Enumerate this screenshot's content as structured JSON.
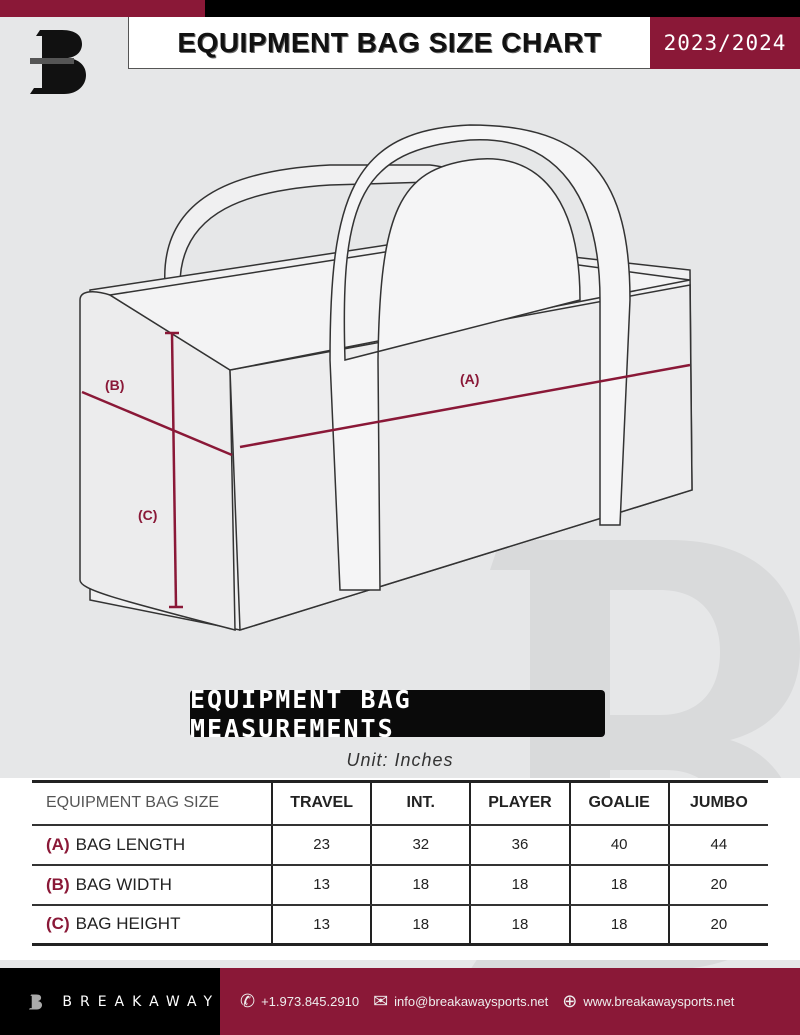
{
  "header": {
    "title": "EQUIPMENT BAG SIZE CHART",
    "season": "2023/2024",
    "logo_letter": "B"
  },
  "diagram": {
    "label_a": "(A)",
    "label_b": "(B)",
    "label_c": "(C)"
  },
  "section_title": "EQUIPMENT BAG MEASUREMENTS",
  "unit": "Unit: Inches",
  "table": {
    "header_label": "EQUIPMENT BAG SIZE",
    "columns": [
      "TRAVEL",
      "INT.",
      "PLAYER",
      "GOALIE",
      "JUMBO"
    ],
    "rows": [
      {
        "letter": "(A)",
        "label": "BAG LENGTH",
        "values": [
          "23",
          "32",
          "36",
          "40",
          "44"
        ]
      },
      {
        "letter": "(B)",
        "label": "BAG WIDTH",
        "values": [
          "13",
          "18",
          "18",
          "18",
          "20"
        ]
      },
      {
        "letter": "(C)",
        "label": "BAG HEIGHT",
        "values": [
          "13",
          "18",
          "18",
          "18",
          "20"
        ]
      }
    ]
  },
  "footer": {
    "brand": "BREAKAWAY",
    "phone": "+1.973.845.2910",
    "email": "info@breakawaysports.net",
    "website": "www.breakawaysports.net"
  },
  "colors": {
    "accent": "#8a1837",
    "dark": "#000000",
    "background": "#e6e7e8"
  }
}
